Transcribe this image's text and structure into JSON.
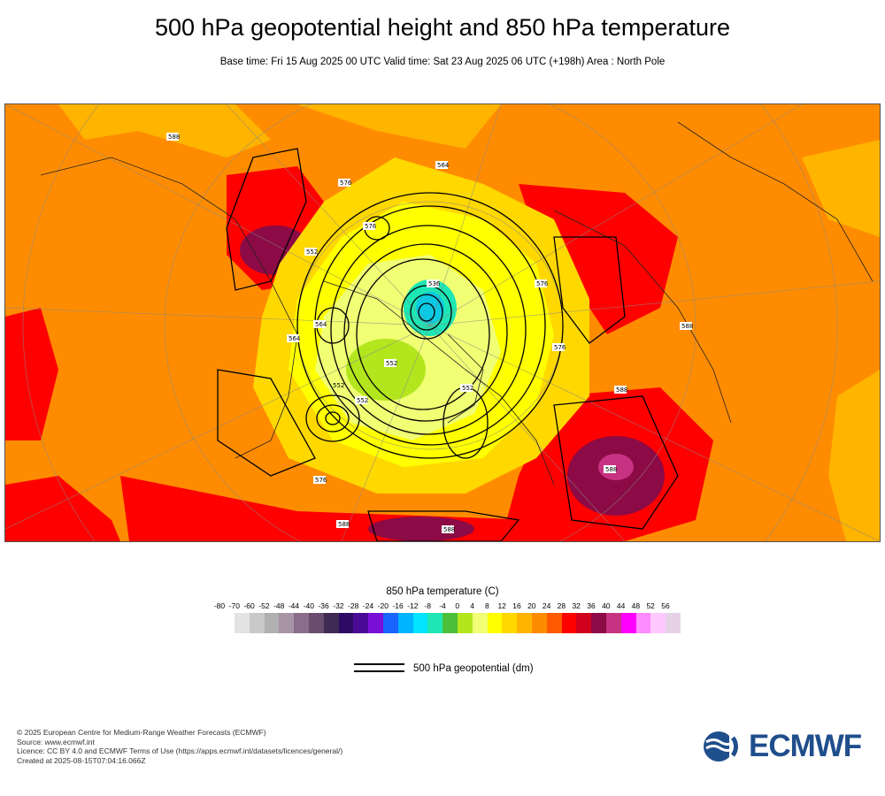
{
  "title": "500 hPa geopotential height and 850 hPa temperature",
  "subtitle": "Base time: Fri 15 Aug 2025 00 UTC Valid time: Sat 23 Aug 2025 06 UTC (+198h) Area : North Pole",
  "map": {
    "area": "North Pole",
    "projection": "polar stereographic",
    "contour_labels": [
      "552",
      "552",
      "552",
      "576",
      "564",
      "588",
      "588",
      "588",
      "576",
      "564",
      "564",
      "576",
      "536",
      "552",
      "588",
      "576",
      "576",
      "588",
      "588",
      "552"
    ]
  },
  "colorbar": {
    "title": "850 hPa temperature (C)",
    "ticks": [
      "-80",
      "-70",
      "-60",
      "-52",
      "-48",
      "-44",
      "-40",
      "-36",
      "-32",
      "-28",
      "-24",
      "-20",
      "-16",
      "-12",
      "-8",
      "-4",
      "0",
      "4",
      "8",
      "12",
      "16",
      "20",
      "24",
      "28",
      "32",
      "36",
      "40",
      "44",
      "48",
      "52",
      "56"
    ],
    "colors": [
      "#e3e3e3",
      "#c9c9c9",
      "#b0b0b0",
      "#a794a6",
      "#8a6d8a",
      "#6a4d6e",
      "#3f2a54",
      "#2e0a64",
      "#4a0a96",
      "#7a10d8",
      "#1a64ff",
      "#00b4ff",
      "#00e4ff",
      "#1ee6b4",
      "#4cbf3a",
      "#b4e61e",
      "#f0ff73",
      "#ffff00",
      "#ffd800",
      "#ffb400",
      "#ff8c00",
      "#ff5a00",
      "#ff0000",
      "#d2001e",
      "#8c0a46",
      "#c83282",
      "#ff00ff",
      "#ff8cff",
      "#ffc8ff",
      "#e6d2e6"
    ]
  },
  "legend": {
    "label": "500 hPa geopotential (dm)"
  },
  "footer": {
    "line1": "© 2025 European Centre for Medium-Range Weather Forecasts (ECMWF)",
    "line2": "Source: www.ecmwf.int",
    "line3": "Licence: CC BY 4.0 and ECMWF Terms of Use (https://apps.ecmwf.int/datasets/licences/general/)",
    "line4": "Created at 2025-08-15T07:04:16.066Z"
  },
  "logo": {
    "text": "ECMWF",
    "color": "#1f4e8c"
  }
}
